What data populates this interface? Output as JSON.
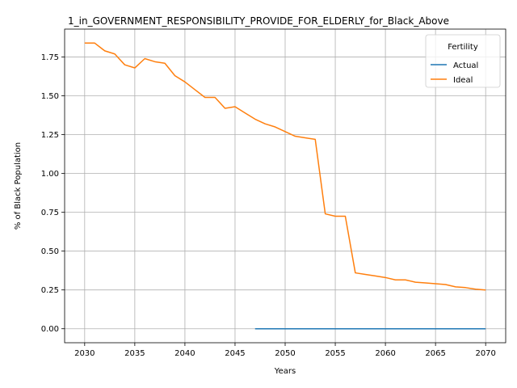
{
  "chart_data": {
    "type": "line",
    "title": "1_in_GOVERNMENT_RESPONSIBILITY_PROVIDE_FOR_ELDERLY_for_Black_Above",
    "xlabel": "Years",
    "ylabel": "% of Black Population",
    "xlim": [
      2028,
      2072
    ],
    "ylim": [
      -0.09,
      1.93
    ],
    "x_ticks": [
      2030,
      2035,
      2040,
      2045,
      2050,
      2055,
      2060,
      2065,
      2070
    ],
    "y_ticks": [
      0.0,
      0.25,
      0.5,
      0.75,
      1.0,
      1.25,
      1.5,
      1.75
    ],
    "y_tick_labels": [
      "0.00",
      "0.25",
      "0.50",
      "0.75",
      "1.00",
      "1.25",
      "1.50",
      "1.75"
    ],
    "grid": true,
    "legend": {
      "title": "Fertility",
      "placement": "top-right"
    },
    "series": [
      {
        "name": "Actual",
        "color": "#1f77b4",
        "x": [
          2047,
          2048,
          2049,
          2050,
          2051,
          2052,
          2053,
          2054,
          2055,
          2056,
          2057,
          2058,
          2059,
          2060,
          2061,
          2062,
          2063,
          2064,
          2065,
          2066,
          2067,
          2068,
          2069,
          2070
        ],
        "values": [
          0,
          0,
          0,
          0,
          0,
          0,
          0,
          0,
          0,
          0,
          0,
          0,
          0,
          0,
          0,
          0,
          0,
          0,
          0,
          0,
          0,
          0,
          0,
          0
        ]
      },
      {
        "name": "Ideal",
        "color": "#ff7f0e",
        "x": [
          2030,
          2031,
          2032,
          2033,
          2034,
          2035,
          2036,
          2037,
          2038,
          2039,
          2040,
          2041,
          2042,
          2043,
          2044,
          2045,
          2046,
          2047,
          2048,
          2049,
          2050,
          2051,
          2052,
          2053,
          2054,
          2055,
          2056,
          2057,
          2058,
          2059,
          2060,
          2061,
          2062,
          2063,
          2064,
          2065,
          2066,
          2067,
          2068,
          2069,
          2070
        ],
        "values": [
          1.84,
          1.84,
          1.79,
          1.77,
          1.7,
          1.68,
          1.74,
          1.72,
          1.71,
          1.63,
          1.59,
          1.54,
          1.49,
          1.49,
          1.42,
          1.43,
          1.39,
          1.35,
          1.32,
          1.3,
          1.27,
          1.24,
          1.23,
          1.22,
          0.74,
          0.725,
          0.725,
          0.36,
          0.35,
          0.34,
          0.33,
          0.315,
          0.315,
          0.3,
          0.295,
          0.29,
          0.285,
          0.27,
          0.265,
          0.255,
          0.25
        ]
      }
    ]
  }
}
